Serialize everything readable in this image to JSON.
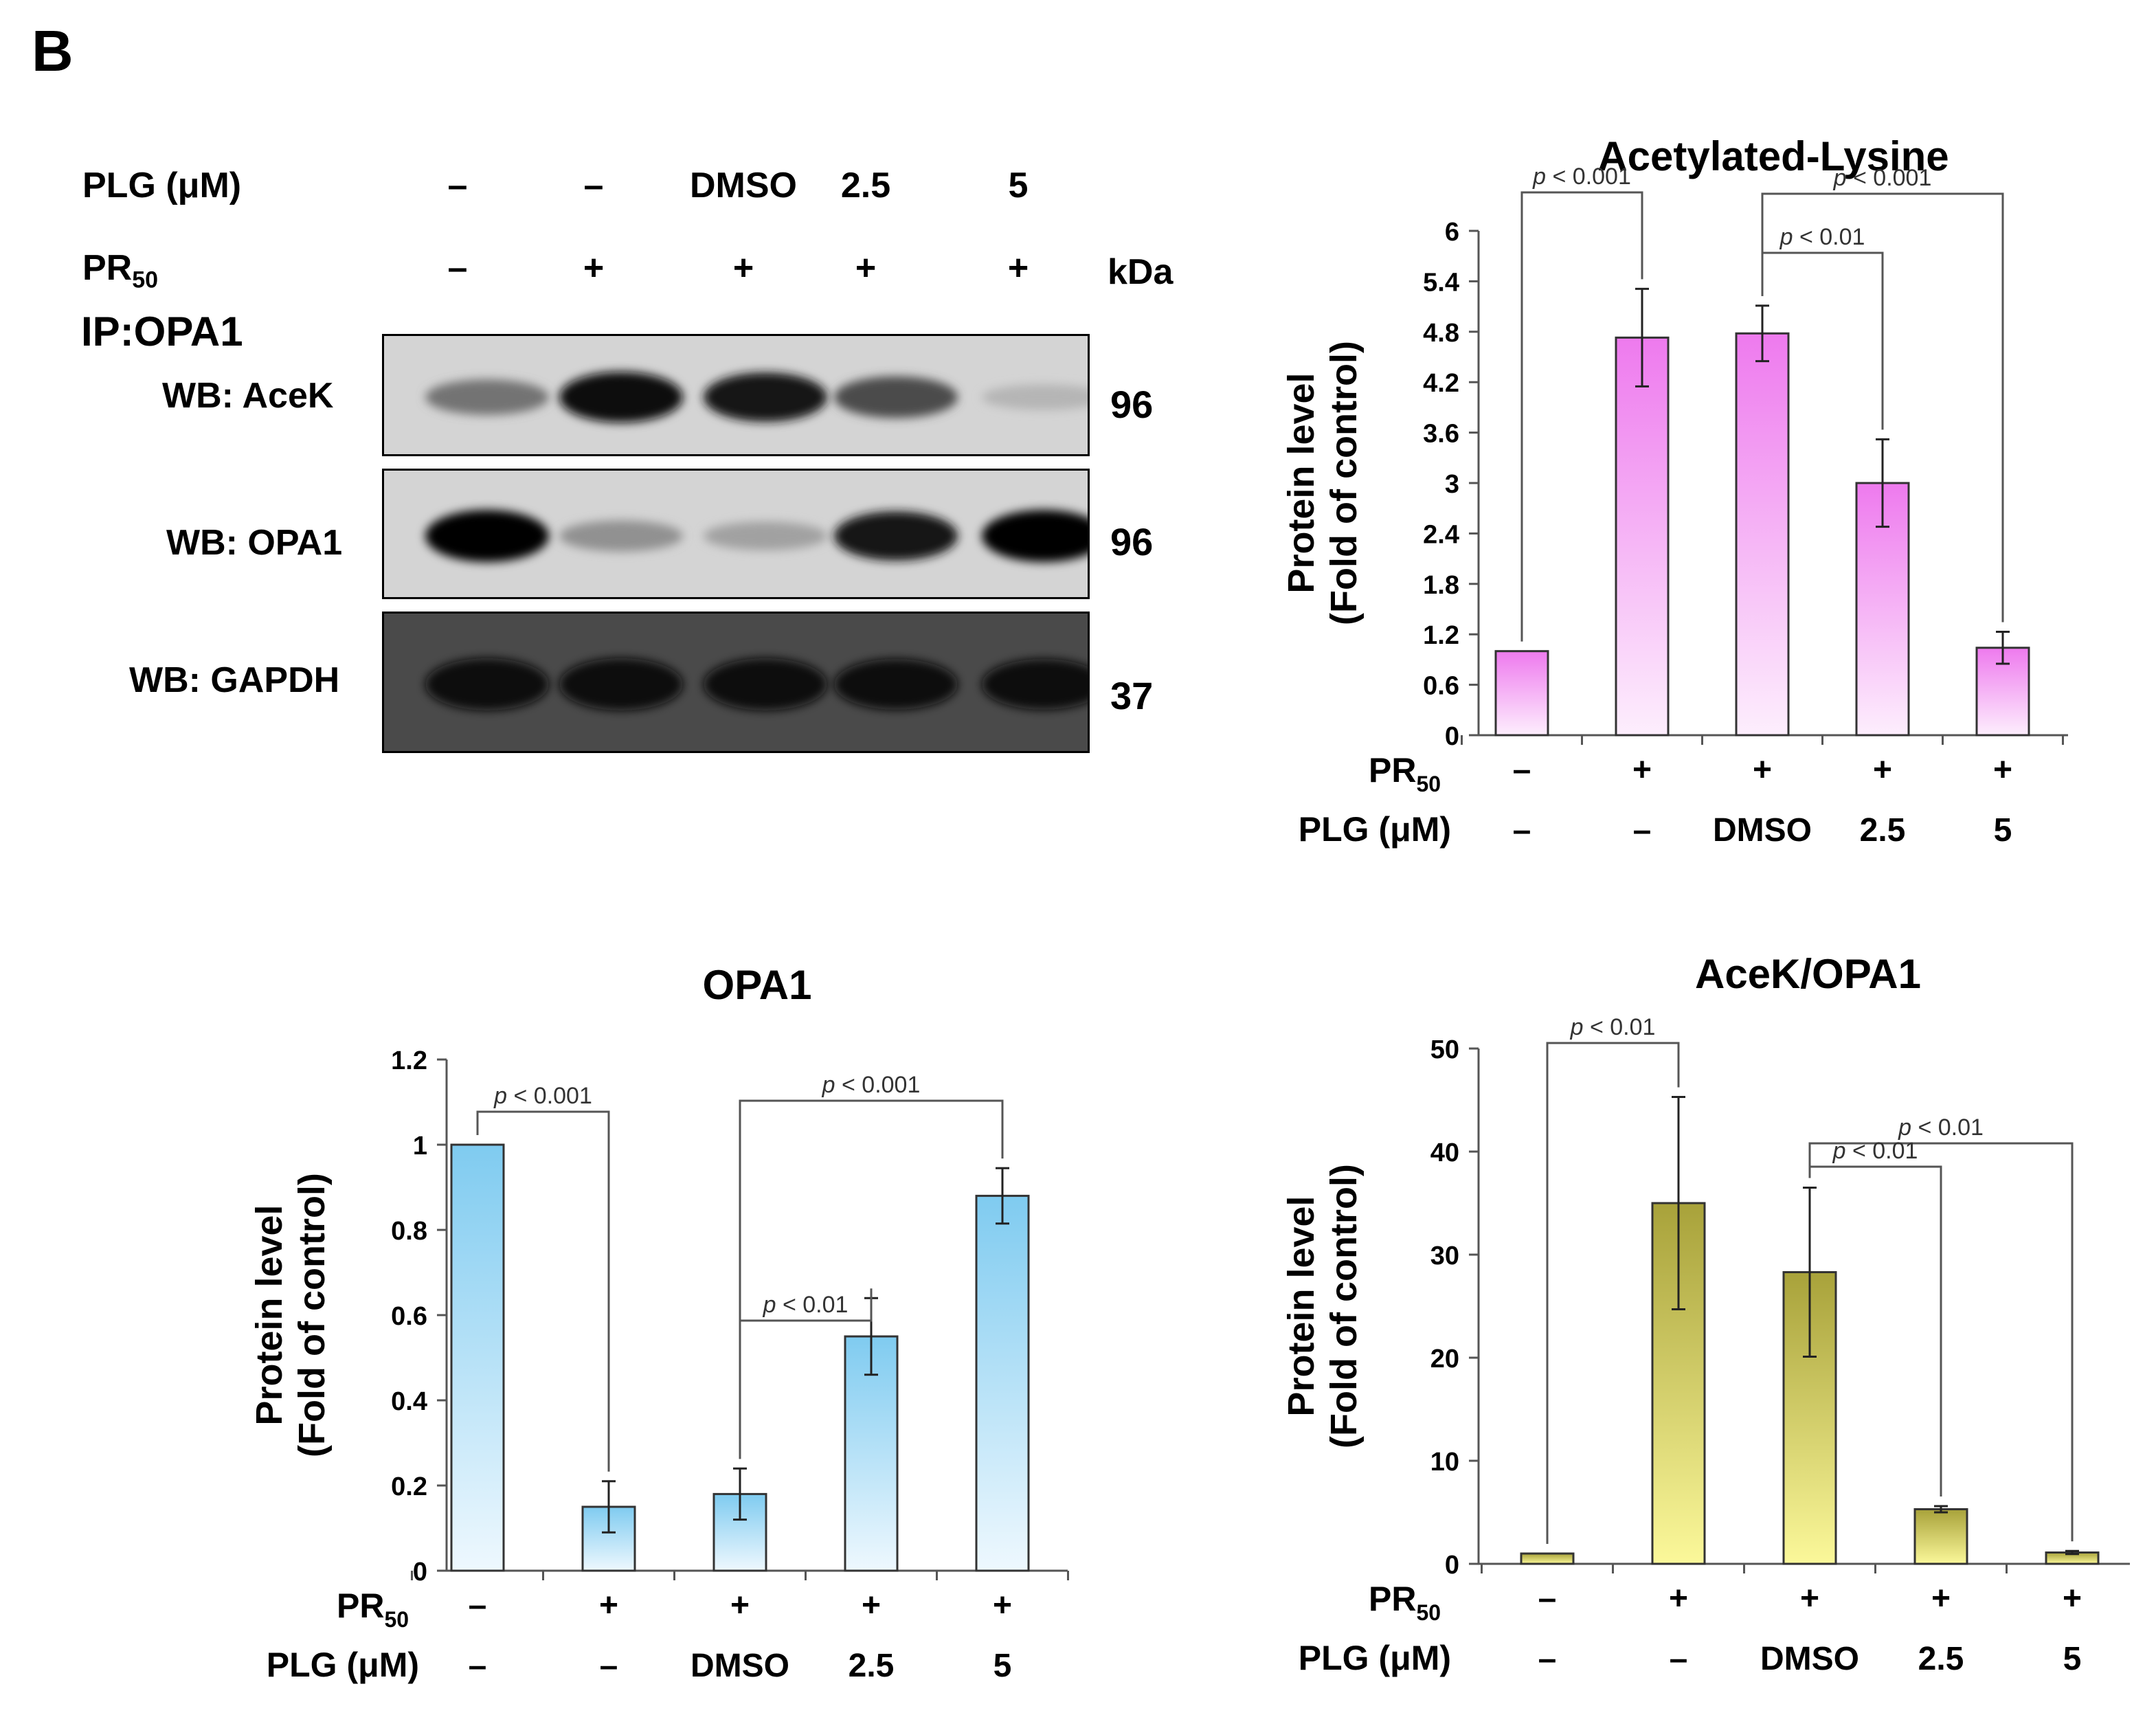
{
  "panel_label": "B",
  "blot": {
    "plg_label": "PLG (μM)",
    "pr_label": "PR",
    "pr_sub": "50",
    "kda_label": "kDa",
    "ip_label": "IP:OPA1",
    "plg_values": [
      "–",
      "–",
      "DMSO",
      "2.5",
      "5"
    ],
    "pr_values": [
      "–",
      "+",
      "+",
      "+",
      "+"
    ],
    "rows": [
      {
        "label": "WB: AceK",
        "mw": "96",
        "intensities": [
          0.45,
          0.95,
          0.9,
          0.65,
          0.12
        ]
      },
      {
        "label": "WB: OPA1",
        "mw": "96",
        "intensities": [
          1.0,
          0.3,
          0.22,
          0.9,
          1.0
        ]
      },
      {
        "label": "WB: GAPDH",
        "mw": "37",
        "intensities": [
          1.0,
          1.0,
          1.0,
          0.95,
          0.95
        ]
      }
    ]
  },
  "conditions": {
    "pr_label": "PR",
    "pr_sub": "50",
    "pr_values": [
      "–",
      "+",
      "+",
      "+",
      "+"
    ],
    "plg_label": "PLG (μM)",
    "plg_values": [
      "–",
      "–",
      "DMSO",
      "2.5",
      "5"
    ]
  },
  "chart_data": [
    {
      "type": "bar",
      "title": "Acetylated-Lysine",
      "ylabel_line1": "Protein level",
      "ylabel_line2": "(Fold of control)",
      "ylim": [
        0,
        6
      ],
      "yticks": [
        "0",
        "0.6",
        "1.2",
        "1.8",
        "2.4",
        "3",
        "3.6",
        "4.2",
        "4.8",
        "5.4",
        "6"
      ],
      "values": [
        1.0,
        4.73,
        4.78,
        3.0,
        1.04
      ],
      "errors": [
        0,
        0.58,
        0.33,
        0.52,
        0.19
      ],
      "color_top": "#ee7aee",
      "color_bottom": "#fdeefd",
      "significance": [
        {
          "from": 0,
          "to": 1,
          "label": "p < 0.001"
        },
        {
          "from": 2,
          "to": 4,
          "label": "p < 0.001"
        },
        {
          "from": 2,
          "to": 3,
          "label": "p < 0.01"
        }
      ]
    },
    {
      "type": "bar",
      "title": "OPA1",
      "ylabel_line1": "Protein level",
      "ylabel_line2": "(Fold of control)",
      "ylim": [
        0,
        1.2
      ],
      "yticks": [
        "0",
        "0.2",
        "0.4",
        "0.6",
        "0.8",
        "1",
        "1.2"
      ],
      "values": [
        1.0,
        0.15,
        0.18,
        0.55,
        0.88
      ],
      "errors": [
        0,
        0.06,
        0.06,
        0.09,
        0.065
      ],
      "color_top": "#7fcbf0",
      "color_bottom": "#eef8fe",
      "significance": [
        {
          "from": 0,
          "to": 1,
          "label": "p < 0.001"
        },
        {
          "from": 2,
          "to": 4,
          "label": "p < 0.001"
        },
        {
          "from": 2,
          "to": 3,
          "label": "p < 0.01"
        }
      ]
    },
    {
      "type": "bar",
      "title": "AceK/OPA1",
      "ylabel_line1": "Protein level",
      "ylabel_line2": "(Fold of control)",
      "ylim": [
        0,
        50
      ],
      "yticks": [
        "0",
        "10",
        "20",
        "30",
        "40",
        "50"
      ],
      "values": [
        1.0,
        35.0,
        28.3,
        5.3,
        1.1
      ],
      "errors": [
        0,
        10.3,
        8.2,
        0.3,
        0.15
      ],
      "color_top": "#a8a23a",
      "color_bottom": "#fbf89a",
      "significance": [
        {
          "from": 0,
          "to": 1,
          "label": "p < 0.01"
        },
        {
          "from": 2,
          "to": 4,
          "label": "p < 0.01"
        },
        {
          "from": 2,
          "to": 3,
          "label": "p < 0.01"
        }
      ]
    }
  ]
}
